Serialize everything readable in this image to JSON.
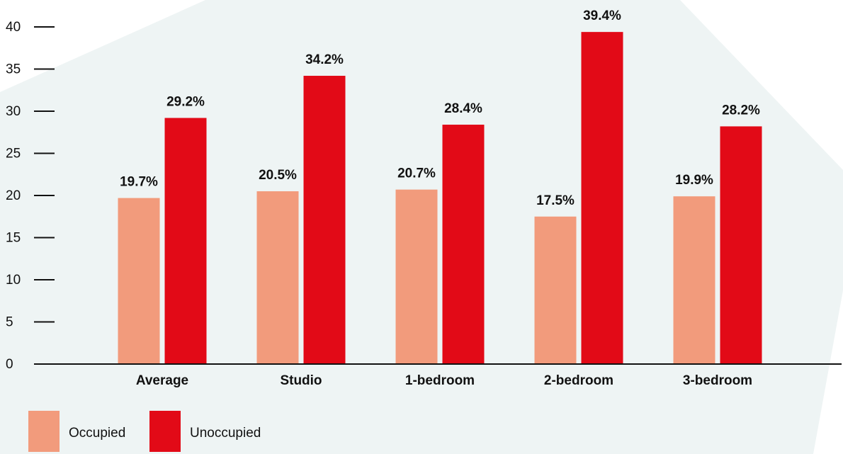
{
  "chart_data": {
    "type": "bar",
    "title": "",
    "xlabel": "",
    "ylabel": "",
    "categories": [
      "Average",
      "Studio",
      "1-bedroom",
      "2-bedroom",
      "3-bedroom"
    ],
    "series": [
      {
        "name": "Occupied",
        "color": "#f29b7c",
        "values": [
          19.7,
          20.5,
          20.7,
          17.5,
          19.9
        ],
        "labels": [
          "19.7%",
          "20.5%",
          "20.7%",
          "17.5%",
          "19.9%"
        ]
      },
      {
        "name": "Unoccupied",
        "color": "#e20a17",
        "values": [
          29.2,
          34.2,
          28.4,
          39.4,
          28.2
        ],
        "labels": [
          "29.2%",
          "34.2%",
          "28.4%",
          "39.4%",
          "28.2%"
        ]
      }
    ],
    "ylim": [
      0,
      40
    ],
    "yticks": [
      0,
      5,
      10,
      15,
      20,
      25,
      30,
      35,
      40
    ],
    "grid": false,
    "legend_position": "bottom-left",
    "background_shape_color": "#eef4f4"
  }
}
